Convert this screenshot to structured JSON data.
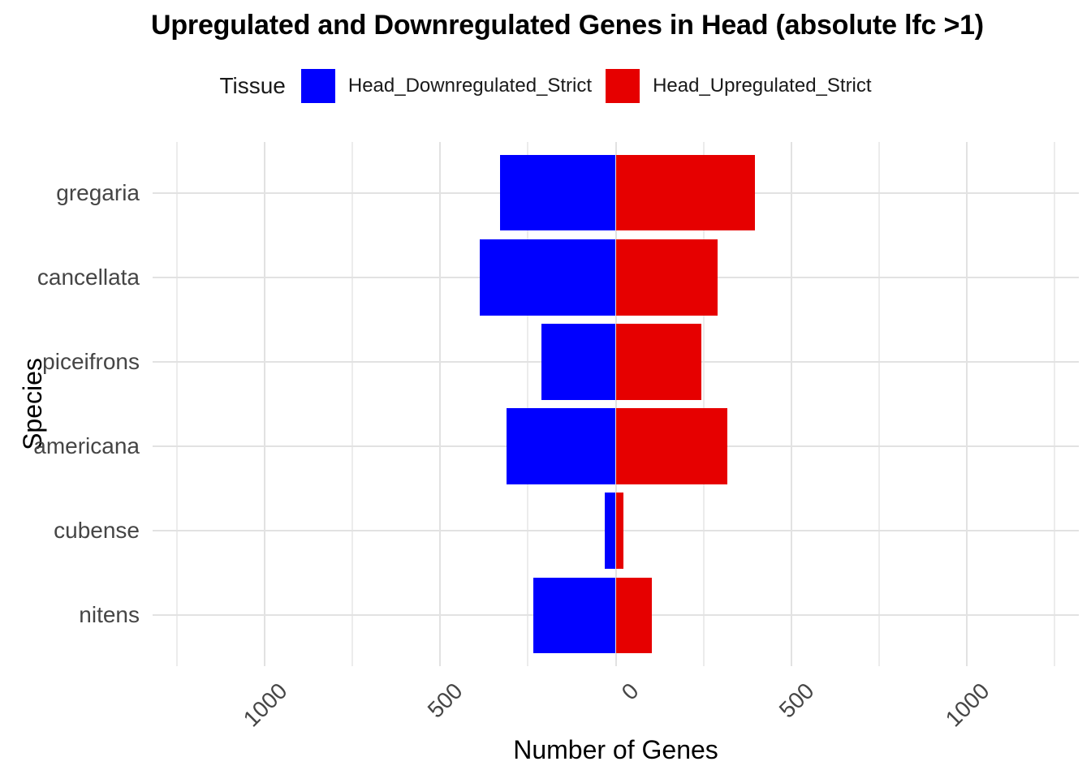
{
  "title": "Upregulated and Downregulated Genes in Head (absolute lfc >1)",
  "legend": {
    "title": "Tissue",
    "items": [
      {
        "label": "Head_Downregulated_Strict",
        "color": "#0000FF"
      },
      {
        "label": "Head_Upregulated_Strict",
        "color": "#E60000"
      }
    ]
  },
  "colors": {
    "downregulated": "#0000FF",
    "upregulated": "#E60000",
    "major_gridline": "#E2E2E2",
    "minor_gridline": "#ECECEC",
    "axis_text": "#454545",
    "title_text": "#000000"
  },
  "chart_data": {
    "type": "bar",
    "orientation": "horizontal-diverging",
    "title": "Upregulated and Downregulated Genes in Head (absolute lfc >1)",
    "xlabel": "Number of Genes",
    "ylabel": "Species",
    "legend_position": "top",
    "grid": true,
    "categories": [
      "gregaria",
      "cancellata",
      "piceifrons",
      "americana",
      "cubense",
      "nitens"
    ],
    "series": [
      {
        "name": "Head_Downregulated_Strict",
        "direction": "negative",
        "color": "#0000FF",
        "values": [
          329,
          387,
          211,
          312,
          32,
          234
        ]
      },
      {
        "name": "Head_Upregulated_Strict",
        "direction": "positive",
        "color": "#E60000",
        "values": [
          396,
          290,
          244,
          319,
          23,
          104
        ]
      }
    ],
    "x_axis": {
      "xlim": [
        -1320,
        1320
      ],
      "major_ticks": [
        -1000,
        -500,
        0,
        500,
        1000
      ],
      "tick_labels": [
        "1000",
        "500",
        "0",
        "500",
        "1000"
      ],
      "minor_ticks": [
        -1250,
        -750,
        -250,
        250,
        750,
        1250
      ]
    }
  }
}
